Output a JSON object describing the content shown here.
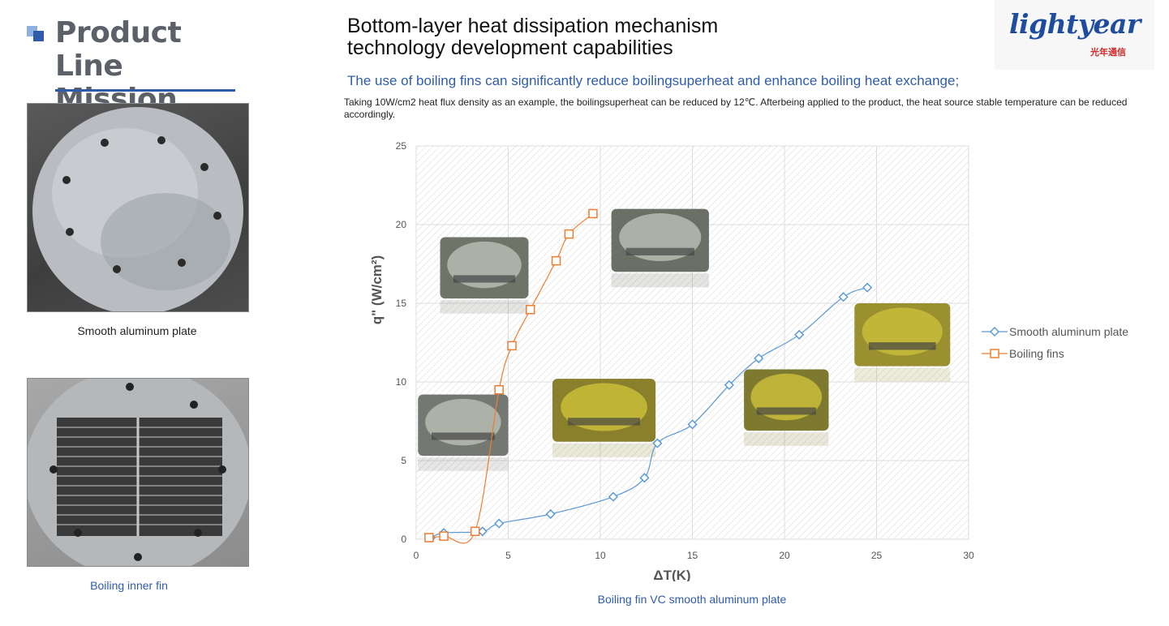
{
  "header": {
    "section_title": "Product Line Mission",
    "main_title_line1": "Bottom-layer heat dissipation mechanism",
    "main_title_line2": "technology development capabilities",
    "subtitle": "The use of boiling fins can significantly reduce boilingsuperheat and enhance boiling heat exchange;",
    "description": "Taking 10W/cm2 heat flux density as an example, the boilingsuperheat can be reduced by 12℃. Afterbeing applied to the product, the heat source stable temperature can be reduced accordingly."
  },
  "logo": {
    "text": "lightyear",
    "sub": "光年通信"
  },
  "photos": {
    "smooth_caption": "Smooth aluminum plate",
    "fin_caption": "Boiling inner fin"
  },
  "chart_caption": "Boiling fin VC smooth aluminum plate",
  "colors": {
    "accent": "#2f5caa",
    "smooth_series": "#5b9bd5",
    "fins_series": "#ed7d31"
  },
  "chart_data": {
    "type": "scatter",
    "xlabel": "ΔT(K)",
    "ylabel": "q\"  (W/cm²)",
    "xlim": [
      0,
      30
    ],
    "ylim": [
      0,
      25
    ],
    "x_ticks": [
      "0",
      "5",
      "10",
      "15",
      "20",
      "25",
      "30"
    ],
    "y_ticks": [
      "0",
      "5",
      "10",
      "15",
      "20",
      "25"
    ],
    "grid": true,
    "legend_position": "right",
    "series": [
      {
        "name": "Smooth aluminum plate",
        "marker": "diamond",
        "x": [
          0.8,
          1.5,
          3.6,
          4.5,
          7.3,
          10.7,
          12.4,
          13.1,
          15.0,
          17.0,
          18.6,
          20.8,
          23.2,
          24.5
        ],
        "y": [
          0.1,
          0.4,
          0.5,
          1.0,
          1.6,
          2.7,
          3.9,
          6.1,
          7.3,
          9.8,
          11.5,
          13.0,
          15.4,
          16.0
        ]
      },
      {
        "name": "Boiling fins",
        "marker": "square",
        "x": [
          0.7,
          1.5,
          3.2,
          4.5,
          5.2,
          6.2,
          7.6,
          8.3,
          9.6
        ],
        "y": [
          0.1,
          0.2,
          0.5,
          9.5,
          12.3,
          14.6,
          17.7,
          19.4,
          20.7
        ]
      }
    ]
  }
}
